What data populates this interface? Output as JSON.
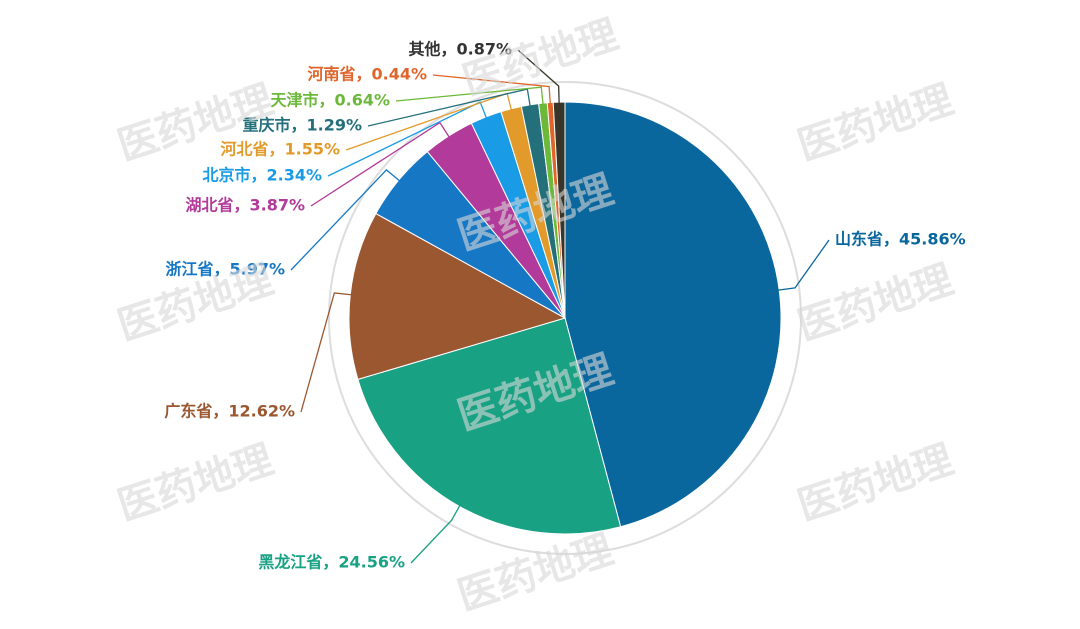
{
  "chart_data": {
    "type": "pie",
    "values": [
      45.86,
      24.56,
      12.62,
      5.97,
      3.87,
      2.34,
      1.55,
      1.29,
      0.64,
      0.44,
      0.87
    ],
    "value_labels": [
      "山东省，45.86%",
      "黑龙江省，24.56%",
      "广东省，12.62%",
      "浙江省，5.97%",
      "湖北省，3.87%",
      "北京市，2.34%",
      "河北省，1.55%",
      "重庆市，1.29%",
      "天津市，0.64%",
      "河南省，0.44%",
      "其他，0.87%"
    ],
    "colors": [
      "#0a679e",
      "#19a184",
      "#9a5730",
      "#1677c5",
      "#b23a9a",
      "#1a9be6",
      "#e29a2a",
      "#23707a",
      "#6cb83a",
      "#e0652a",
      "#38352a"
    ],
    "label_colors": [
      "#0a679e",
      "#19a184",
      "#9a5730",
      "#1677c5",
      "#b23a9a",
      "#1a9be6",
      "#e29a2a",
      "#23707a",
      "#6cb83a",
      "#e0652a",
      "#333333"
    ]
  },
  "watermark": "医药地理"
}
